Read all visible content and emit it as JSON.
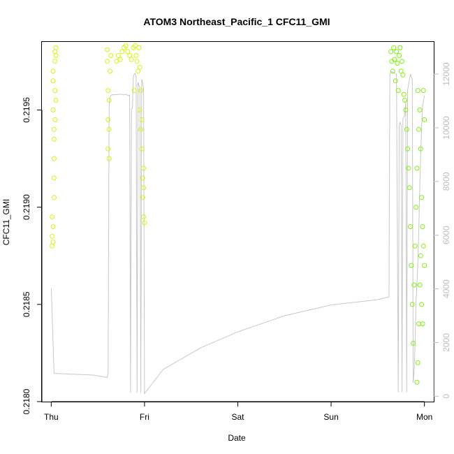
{
  "chart_data": {
    "type": "scatter",
    "title": "ATOM3 Northeast_Pacific_1 CFC11_GMI",
    "xlabel": "Date",
    "ylabel": "CFC11_GMI",
    "x_ticks": [
      {
        "label": "Thu",
        "day": 0
      },
      {
        "label": "Fri",
        "day": 1
      },
      {
        "label": "Sat",
        "day": 2
      },
      {
        "label": "Sun",
        "day": 3
      },
      {
        "label": "Mon",
        "day": 4
      }
    ],
    "xlim": [
      -0.1,
      4.1
    ],
    "ylim": [
      0.218,
      0.21985
    ],
    "y_ticks": [
      "0.2180",
      "0.2185",
      "0.2190",
      "0.2195"
    ],
    "y2_ticks": [
      "0",
      "2000",
      "4000",
      "6000",
      "8000",
      "10000",
      "12000"
    ],
    "y2lim": [
      -200,
      13200
    ],
    "colors": {
      "points_early": "#d4f50a",
      "points_late": "#80f00a",
      "altitude_line": "#c8c8c8"
    },
    "series": [
      {
        "points": [
          [
            0.01,
            0.21895
          ],
          [
            0.01,
            0.21885
          ],
          [
            0.01,
            0.2188
          ],
          [
            0.02,
            0.2189
          ],
          [
            0.02,
            0.21882
          ],
          [
            0.02,
            0.2195
          ],
          [
            0.02,
            0.21965
          ],
          [
            0.02,
            0.2197
          ],
          [
            0.03,
            0.21925
          ],
          [
            0.03,
            0.21915
          ],
          [
            0.03,
            0.21905
          ],
          [
            0.03,
            0.21935
          ],
          [
            0.03,
            0.2194
          ],
          [
            0.04,
            0.2196
          ],
          [
            0.04,
            0.21975
          ],
          [
            0.04,
            0.2198
          ],
          [
            0.05,
            0.21982
          ],
          [
            0.05,
            0.21978
          ],
          [
            0.05,
            0.21955
          ],
          [
            0.04,
            0.21945
          ],
          [
            0.6,
            0.21981
          ],
          [
            0.6,
            0.21975
          ],
          [
            0.61,
            0.2196
          ],
          [
            0.61,
            0.21945
          ],
          [
            0.61,
            0.2193
          ],
          [
            0.62,
            0.21925
          ],
          [
            0.62,
            0.21955
          ],
          [
            0.63,
            0.2197
          ],
          [
            0.64,
            0.21978
          ],
          [
            0.62,
            0.2194
          ],
          [
            0.7,
            0.21975
          ],
          [
            0.72,
            0.21978
          ],
          [
            0.74,
            0.21976
          ],
          [
            0.76,
            0.2198
          ],
          [
            0.78,
            0.21982
          ],
          [
            0.8,
            0.21983
          ],
          [
            0.82,
            0.2198
          ],
          [
            0.84,
            0.21978
          ],
          [
            0.86,
            0.21976
          ],
          [
            0.88,
            0.21982
          ],
          [
            0.89,
            0.2196
          ],
          [
            0.9,
            0.21983
          ],
          [
            0.91,
            0.21978
          ],
          [
            0.92,
            0.21975
          ],
          [
            0.93,
            0.2197
          ],
          [
            0.94,
            0.21982
          ],
          [
            0.95,
            0.21972
          ],
          [
            0.96,
            0.2196
          ],
          [
            0.97,
            0.21945
          ],
          [
            0.97,
            0.2193
          ],
          [
            0.98,
            0.21915
          ],
          [
            0.98,
            0.21905
          ],
          [
            0.99,
            0.21895
          ],
          [
            0.99,
            0.2191
          ],
          [
            1.0,
            0.21892
          ],
          [
            0.99,
            0.2192
          ],
          [
            0.96,
            0.2194
          ],
          [
            0.95,
            0.2195
          ]
        ]
      },
      {
        "points": [
          [
            3.64,
            0.2198
          ],
          [
            3.65,
            0.21975
          ],
          [
            3.66,
            0.2197
          ],
          [
            3.67,
            0.21982
          ],
          [
            3.68,
            0.21976
          ],
          [
            3.69,
            0.21965
          ],
          [
            3.7,
            0.2198
          ],
          [
            3.71,
            0.21974
          ],
          [
            3.72,
            0.2196
          ],
          [
            3.73,
            0.21978
          ],
          [
            3.74,
            0.21982
          ],
          [
            3.75,
            0.2197
          ],
          [
            3.76,
            0.21975
          ],
          [
            3.77,
            0.21968
          ],
          [
            3.78,
            0.21958
          ],
          [
            3.79,
            0.21955
          ],
          [
            3.8,
            0.2195
          ],
          [
            3.81,
            0.2194
          ],
          [
            3.82,
            0.2193
          ],
          [
            3.83,
            0.2192
          ],
          [
            3.84,
            0.2191
          ],
          [
            3.85,
            0.2189
          ],
          [
            3.86,
            0.2187
          ],
          [
            3.87,
            0.2185
          ],
          [
            3.88,
            0.2183
          ],
          [
            3.89,
            0.2186
          ],
          [
            3.9,
            0.2188
          ],
          [
            3.91,
            0.219
          ],
          [
            3.92,
            0.2192
          ],
          [
            3.93,
            0.2196
          ],
          [
            3.94,
            0.2194
          ],
          [
            3.95,
            0.2195
          ],
          [
            3.96,
            0.2193
          ],
          [
            3.97,
            0.21905
          ],
          [
            3.98,
            0.2189
          ],
          [
            3.99,
            0.2188
          ],
          [
            4.0,
            0.2187
          ],
          [
            4.0,
            0.21945
          ],
          [
            3.99,
            0.2196
          ],
          [
            3.92,
            0.2181
          ],
          [
            3.93,
            0.2182
          ],
          [
            3.94,
            0.2184
          ],
          [
            3.95,
            0.2186
          ],
          [
            3.96,
            0.21875
          ],
          [
            3.97,
            0.2185
          ],
          [
            3.98,
            0.2184
          ]
        ]
      }
    ],
    "altitude_line": [
      [
        0.0,
        4.01
      ],
      [
        0.03,
        0.85
      ],
      [
        0.45,
        0.79
      ],
      [
        0.6,
        0.7
      ],
      [
        0.61,
        0.85
      ],
      [
        0.62,
        10.76
      ],
      [
        0.63,
        11.15
      ],
      [
        0.64,
        11.2
      ],
      [
        0.65,
        11.23
      ],
      [
        0.72,
        11.24
      ],
      [
        0.75,
        11.25
      ],
      [
        0.76,
        11.24
      ],
      [
        0.77,
        11.23
      ],
      [
        0.78,
        11.23
      ],
      [
        0.79,
        11.24
      ],
      [
        0.8,
        11.25
      ],
      [
        0.81,
        11.23
      ],
      [
        0.82,
        11.21
      ],
      [
        0.83,
        11.2
      ],
      [
        0.84,
        11.22
      ],
      [
        0.85,
        0.13
      ],
      [
        0.86,
        10.71
      ],
      [
        0.87,
        10.72
      ],
      [
        0.88,
        11.9
      ],
      [
        0.89,
        12.0
      ],
      [
        0.9,
        12.02
      ],
      [
        0.91,
        11.9
      ],
      [
        0.92,
        0.13
      ],
      [
        0.93,
        11.7
      ],
      [
        0.94,
        11.6
      ],
      [
        0.95,
        11.5
      ],
      [
        0.96,
        0.13
      ],
      [
        0.97,
        11.8
      ],
      [
        0.98,
        11.7
      ],
      [
        0.99,
        11.4
      ],
      [
        1.0,
        0.1
      ],
      [
        1.2,
        1.0
      ],
      [
        1.4,
        1.4
      ],
      [
        1.6,
        1.8
      ],
      [
        2.0,
        2.4
      ],
      [
        2.5,
        3.0
      ],
      [
        3.0,
        3.4
      ],
      [
        3.5,
        3.6
      ],
      [
        3.62,
        3.7
      ],
      [
        3.63,
        12.0
      ],
      [
        3.64,
        12.1
      ],
      [
        3.7,
        12.0
      ],
      [
        3.72,
        0.13
      ],
      [
        3.73,
        10.1
      ],
      [
        3.74,
        10.2
      ],
      [
        3.75,
        10.1
      ],
      [
        3.76,
        0.15
      ],
      [
        3.77,
        10.35
      ],
      [
        3.78,
        10.4
      ],
      [
        3.79,
        10.5
      ],
      [
        3.8,
        11.0
      ],
      [
        3.81,
        0.15
      ],
      [
        3.82,
        11.4
      ],
      [
        3.83,
        11.6
      ],
      [
        3.84,
        11.8
      ],
      [
        3.85,
        12.0
      ],
      [
        3.86,
        11.9
      ],
      [
        3.87,
        11.8
      ],
      [
        3.88,
        0.5
      ],
      [
        3.89,
        1.0
      ],
      [
        3.9,
        2.0
      ],
      [
        3.91,
        3.5
      ],
      [
        3.92,
        4.2
      ],
      [
        3.93,
        5.0
      ],
      [
        3.94,
        6.2
      ],
      [
        3.95,
        7.8
      ],
      [
        3.96,
        9.0
      ],
      [
        3.97,
        10.0
      ],
      [
        3.98,
        10.8
      ],
      [
        4.0,
        11.2
      ]
    ]
  }
}
